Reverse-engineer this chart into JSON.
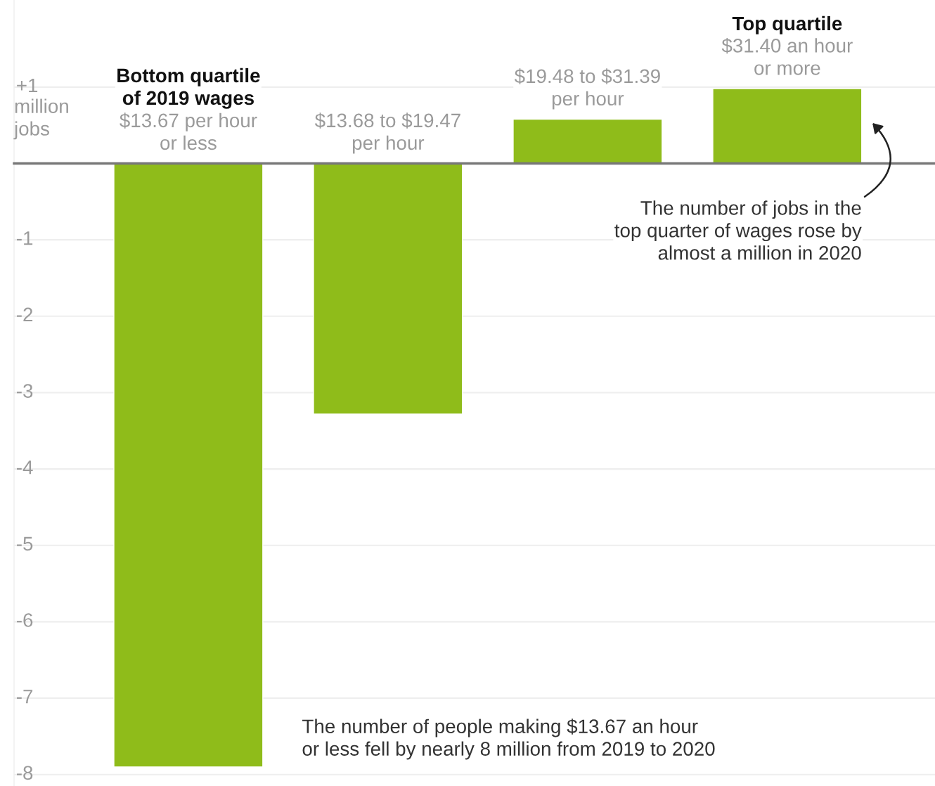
{
  "chart_data": {
    "type": "bar",
    "categories": [
      "$13.67 per hour\nor less",
      "$13.68 to $19.47\nper hour",
      "$19.48 to $31.39\nper hour",
      "$31.40 an hour\nor more"
    ],
    "values": [
      -7.9,
      -3.28,
      0.58,
      0.98
    ],
    "color": "#8fbc1a",
    "ylim": [
      -8.15,
      2.14
    ],
    "yticks": [
      {
        "value": 1,
        "label": "+1"
      },
      -1,
      -2,
      -3,
      -4,
      -5,
      -6,
      -7,
      -8
    ],
    "ylabel": "million\njobs",
    "grid": "y",
    "annotations": [
      "Bottom quartile\nof 2019 wages",
      "Top quartile",
      "The number of jobs in the\ntop quarter of wages rose by\nalmost a million in 2020",
      "The number of people making $13.67 an hour\nor less fell by nearly 8 million from 2019 to 2020"
    ]
  }
}
